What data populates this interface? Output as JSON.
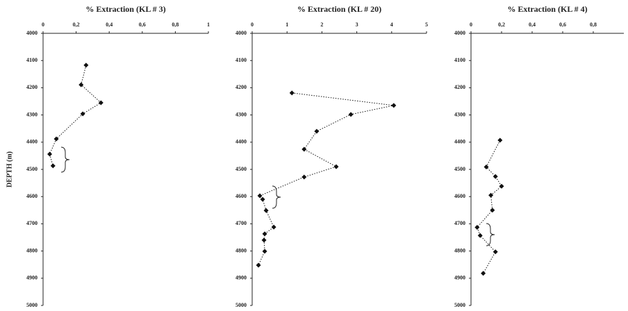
{
  "chart_data": [
    {
      "type": "line",
      "title": "% Extraction (KL # 3)",
      "ylabel": "DEPTH (m)",
      "x": [
        0.26,
        0.23,
        0.35,
        0.24,
        0.08,
        0.04,
        0.06
      ],
      "y": [
        4117,
        4189,
        4255,
        4296,
        4388,
        4444,
        4487
      ],
      "xlim": [
        0,
        1
      ],
      "xticks": [
        0,
        {
          "value": 0.2,
          "label": "0,2"
        },
        {
          "value": 0.4,
          "label": "0,4"
        },
        {
          "value": 0.6,
          "label": "0,6"
        },
        {
          "value": 0.8,
          "label": "0,8"
        },
        1
      ],
      "ylim": [
        4000,
        5000
      ],
      "yticks": [
        4000,
        4100,
        4200,
        4300,
        4400,
        4500,
        4600,
        4700,
        4800,
        4900,
        5000
      ],
      "color": "#111"
    },
    {
      "type": "line",
      "title": "% Extraction (KL # 20)",
      "x": [
        1.14,
        4.06,
        2.83,
        1.85,
        1.49,
        2.41,
        1.49,
        0.22,
        0.3,
        0.4,
        0.62,
        0.36,
        0.34,
        0.36,
        0.18
      ],
      "y": [
        4219,
        4265,
        4298,
        4360,
        4426,
        4490,
        4528,
        4597,
        4610,
        4651,
        4712,
        4737,
        4760,
        4801,
        4852
      ],
      "xlim": [
        0,
        5
      ],
      "xticks": [
        0,
        1,
        2,
        3,
        4,
        5
      ],
      "ylim": [
        4000,
        5000
      ],
      "yticks": [
        4000,
        4100,
        4200,
        4300,
        4400,
        4500,
        4600,
        4700,
        4800,
        4900,
        5000
      ],
      "color": "#111"
    },
    {
      "type": "line",
      "title": "% Extraction (KL # 4)",
      "x": [
        0.19,
        0.1,
        0.16,
        0.2,
        0.13,
        0.14,
        0.04,
        0.06,
        0.16,
        0.08
      ],
      "y": [
        4393,
        4491,
        4526,
        4562,
        4595,
        4650,
        4713,
        4743,
        4803,
        4882
      ],
      "xlim": [
        0,
        1
      ],
      "xticks": [
        0,
        {
          "value": 0.2,
          "label": "0,2"
        },
        {
          "value": 0.4,
          "label": "0,4"
        },
        {
          "value": 0.6,
          "label": "0,6"
        },
        {
          "value": 0.8,
          "label": "0,8"
        }
      ],
      "ylim": [
        4000,
        5000
      ],
      "yticks": [
        4000,
        4100,
        4200,
        4300,
        4400,
        4500,
        4600,
        4700,
        4800,
        4900,
        5000
      ],
      "color": "#111"
    }
  ]
}
